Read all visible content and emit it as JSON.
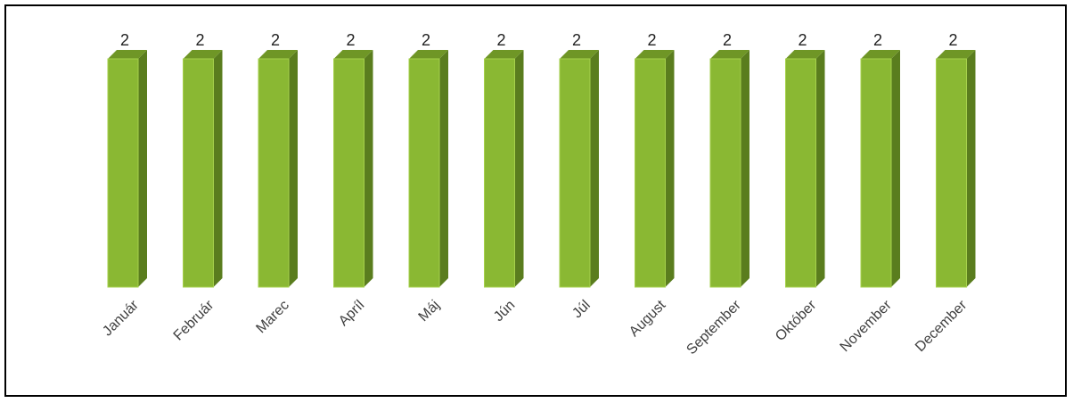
{
  "chart_data": {
    "type": "bar",
    "style": "3d-column",
    "categories": [
      "Január",
      "Február",
      "Marec",
      "Apríl",
      "Máj",
      "Jún",
      "Júl",
      "August",
      "September",
      "Október",
      "November",
      "December"
    ],
    "series": [
      {
        "values": [
          2,
          2,
          2,
          2,
          2,
          2,
          2,
          2,
          2,
          2,
          2,
          2
        ],
        "color": "#8ab833",
        "data_labels": true
      }
    ],
    "title": "",
    "xlabel": "",
    "ylabel": "",
    "ylim": [
      0,
      2
    ],
    "grid": false,
    "legend": "none"
  }
}
